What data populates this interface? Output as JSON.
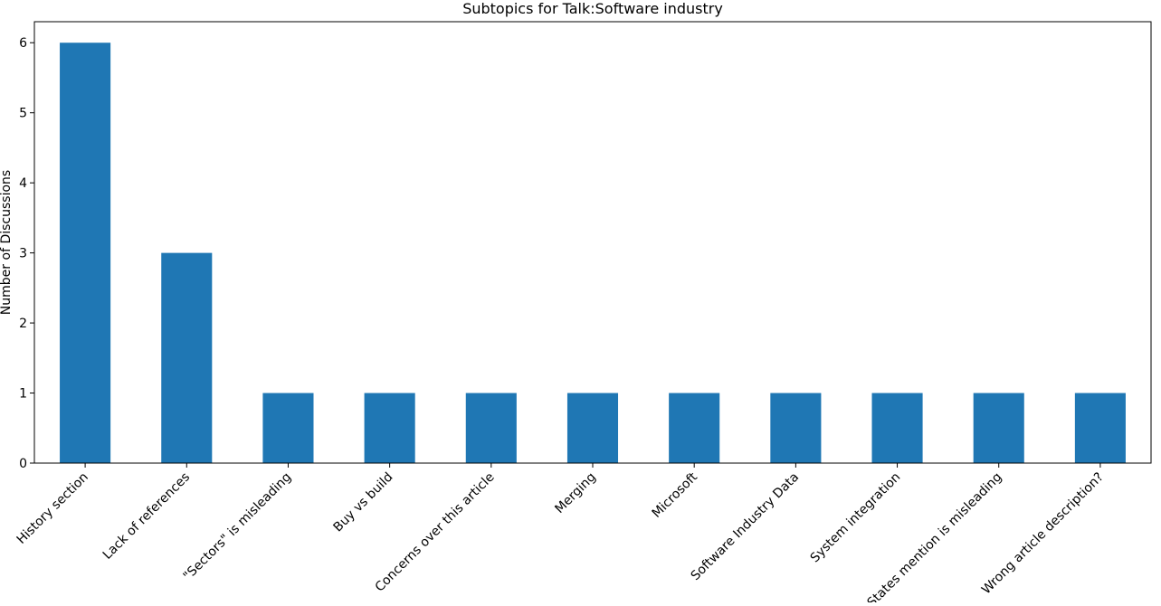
{
  "chart_data": {
    "type": "bar",
    "title": "Subtopics for Talk:Software industry",
    "xlabel": "",
    "ylabel": "Number of Discussions",
    "categories": [
      "History section",
      "Lack of references",
      "\"Sectors\" is misleading",
      "Buy vs build",
      "Concerns over this article",
      "Merging",
      "Microsoft",
      "Software Industry Data",
      "System integration",
      "States mention is misleading",
      "Wrong article description?"
    ],
    "values": [
      6,
      3,
      1,
      1,
      1,
      1,
      1,
      1,
      1,
      1,
      1
    ],
    "ylim": [
      0,
      6.3
    ],
    "yticks": [
      0,
      1,
      2,
      3,
      4,
      5,
      6
    ],
    "grid": false,
    "legend": "none",
    "bar_color": "#1f77b4",
    "axis_color": "#000000"
  }
}
